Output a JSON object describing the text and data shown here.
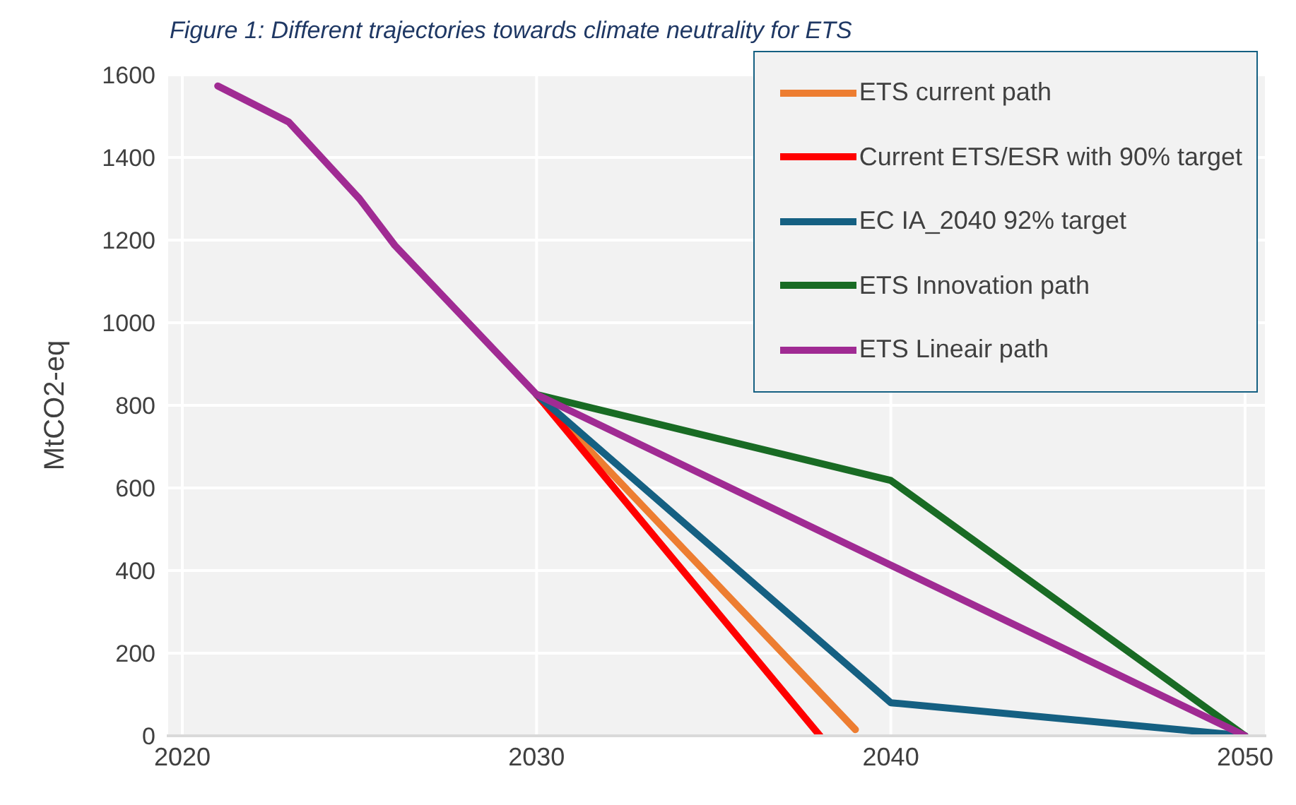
{
  "chart_data": {
    "type": "line",
    "title": "Figure 1: Different trajectories towards climate neutrality for ETS",
    "ylabel": "MtCO2-eq",
    "xlim": [
      2019.56,
      2050.6
    ],
    "xticks": [
      2020,
      2030,
      2040,
      2050
    ],
    "ylim": [
      0,
      1600
    ],
    "yticks": [
      0,
      200,
      400,
      600,
      800,
      1000,
      1200,
      1400,
      1600
    ],
    "grid": true,
    "legend": "top right",
    "marker": "none",
    "line_style": "solid",
    "series": [
      {
        "name": "ETS current path",
        "color": "#ed7d31",
        "x": [
          2030,
          2039
        ],
        "values": [
          826,
          15
        ]
      },
      {
        "name": "Current ETS/ESR with 90% target",
        "color": "#ff0000",
        "x": [
          2030,
          2038
        ],
        "values": [
          826,
          0
        ]
      },
      {
        "name": "EC IA_2040 92% target",
        "color": "#156082",
        "x": [
          2030,
          2040,
          2050
        ],
        "values": [
          826,
          80,
          0
        ]
      },
      {
        "name": "ETS Innovation path",
        "color": "#196b24",
        "x": [
          2030,
          2040,
          2050
        ],
        "values": [
          826,
          618,
          0
        ]
      },
      {
        "name": "ETS Lineair path",
        "color": "#a02b93",
        "x": [
          2021,
          2023,
          2025,
          2026,
          2030,
          2050
        ],
        "values": [
          1573,
          1486,
          1300,
          1187,
          826,
          0
        ]
      }
    ]
  }
}
